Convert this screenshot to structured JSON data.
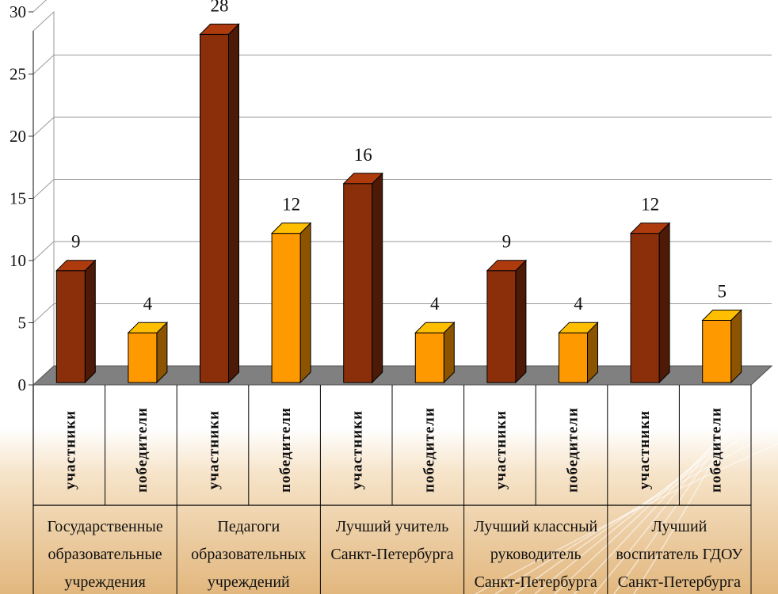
{
  "chart_data": {
    "type": "bar",
    "style": "3d-clustered-column",
    "groups": [
      {
        "label_lines": [
          "Государственные",
          "образовательные",
          "учреждения"
        ]
      },
      {
        "label_lines": [
          "Педагоги",
          "образовательных",
          "учреждений"
        ]
      },
      {
        "label_lines": [
          "Лучший учитель",
          "Санкт-Петербурга"
        ]
      },
      {
        "label_lines": [
          "Лучший классный",
          "руководитель",
          "Санкт-Петербурга"
        ]
      },
      {
        "label_lines": [
          "Лучший",
          "воспитатель ГДОУ",
          "Санкт-Петербурга"
        ]
      }
    ],
    "series": [
      {
        "name": "участники",
        "color": "#8B2F0B",
        "values": [
          9,
          28,
          16,
          9,
          12
        ]
      },
      {
        "name": "победители",
        "color": "#FF9900",
        "values": [
          4,
          12,
          4,
          4,
          5
        ]
      }
    ],
    "data_labels": [
      {
        "value": "9"
      },
      {
        "value": "4"
      },
      {
        "value": "28"
      },
      {
        "value": "12"
      },
      {
        "value": "16"
      },
      {
        "value": "4"
      },
      {
        "value": "9"
      },
      {
        "value": "4"
      },
      {
        "value": "12"
      },
      {
        "value": "5"
      }
    ],
    "y_ticks": [
      "0",
      "5",
      "10",
      "15",
      "20",
      "25",
      "30"
    ],
    "ylim": [
      0,
      30
    ],
    "grid": true,
    "floor_color": "#808080"
  }
}
